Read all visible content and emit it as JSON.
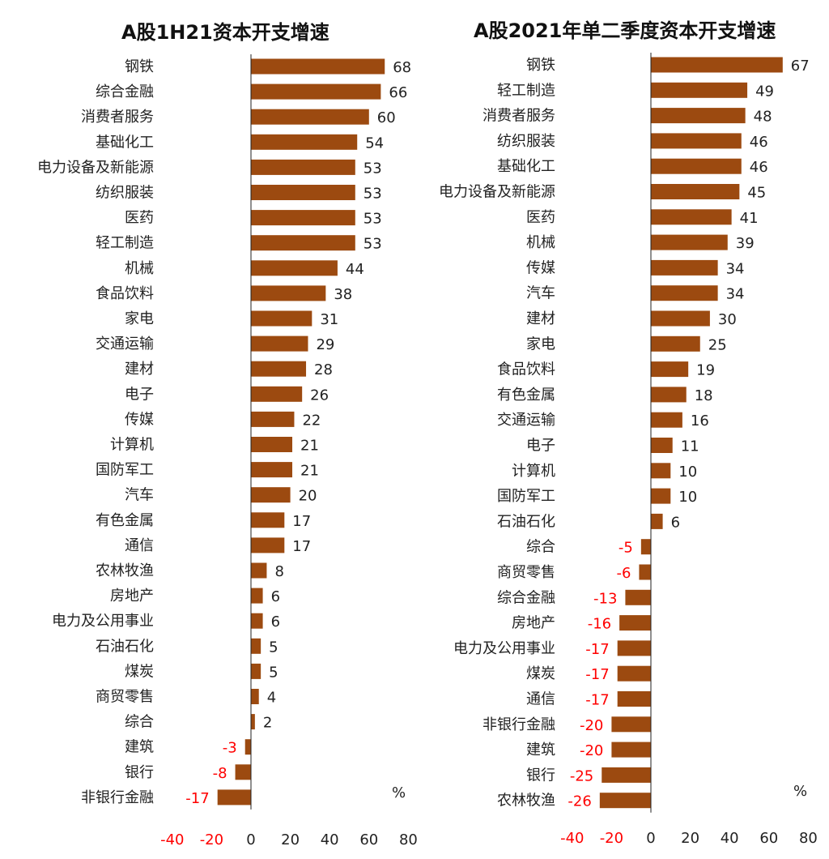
{
  "colors": {
    "bar": "#9C4A10",
    "positive_label": "#222222",
    "negative_label": "#FF0000",
    "axis": "#222222"
  },
  "chart_data": [
    {
      "type": "bar",
      "orientation": "horizontal",
      "title": "A股1H21资本开支增速",
      "unit_label": "%",
      "xlim": [
        -40,
        80
      ],
      "xticks": [
        -40,
        -20,
        0,
        20,
        40,
        60,
        80
      ],
      "grid": false,
      "legend": "none",
      "categories": [
        "钢铁",
        "综合金融",
        "消费者服务",
        "基础化工",
        "电力设备及新能源",
        "纺织服装",
        "医药",
        "轻工制造",
        "机械",
        "食品饮料",
        "家电",
        "交通运输",
        "建材",
        "电子",
        "传媒",
        "计算机",
        "国防军工",
        "汽车",
        "有色金属",
        "通信",
        "农林牧渔",
        "房地产",
        "电力及公用事业",
        "石油石化",
        "煤炭",
        "商贸零售",
        "综合",
        "建筑",
        "银行",
        "非银行金融"
      ],
      "values": [
        68,
        66,
        60,
        54,
        53,
        53,
        53,
        53,
        44,
        38,
        31,
        29,
        28,
        26,
        22,
        21,
        21,
        20,
        17,
        17,
        8,
        6,
        6,
        5,
        5,
        4,
        2,
        -3,
        -8,
        -17
      ]
    },
    {
      "type": "bar",
      "orientation": "horizontal",
      "title": "A股2021年单二季度资本开支增速",
      "unit_label": "%",
      "xlim": [
        -40,
        80
      ],
      "xticks": [
        -40,
        -20,
        0,
        20,
        40,
        60,
        80
      ],
      "grid": false,
      "legend": "none",
      "categories": [
        "钢铁",
        "轻工制造",
        "消费者服务",
        "纺织服装",
        "基础化工",
        "电力设备及新能源",
        "医药",
        "机械",
        "传媒",
        "汽车",
        "建材",
        "家电",
        "食品饮料",
        "有色金属",
        "交通运输",
        "电子",
        "计算机",
        "国防军工",
        "石油石化",
        "综合",
        "商贸零售",
        "综合金融",
        "房地产",
        "电力及公用事业",
        "煤炭",
        "通信",
        "非银行金融",
        "建筑",
        "银行",
        "农林牧渔"
      ],
      "values": [
        67,
        49,
        48,
        46,
        46,
        45,
        41,
        39,
        34,
        34,
        30,
        25,
        19,
        18,
        16,
        11,
        10,
        10,
        6,
        -5,
        -6,
        -13,
        -16,
        -17,
        -17,
        -17,
        -20,
        -20,
        -25,
        -26
      ]
    }
  ]
}
